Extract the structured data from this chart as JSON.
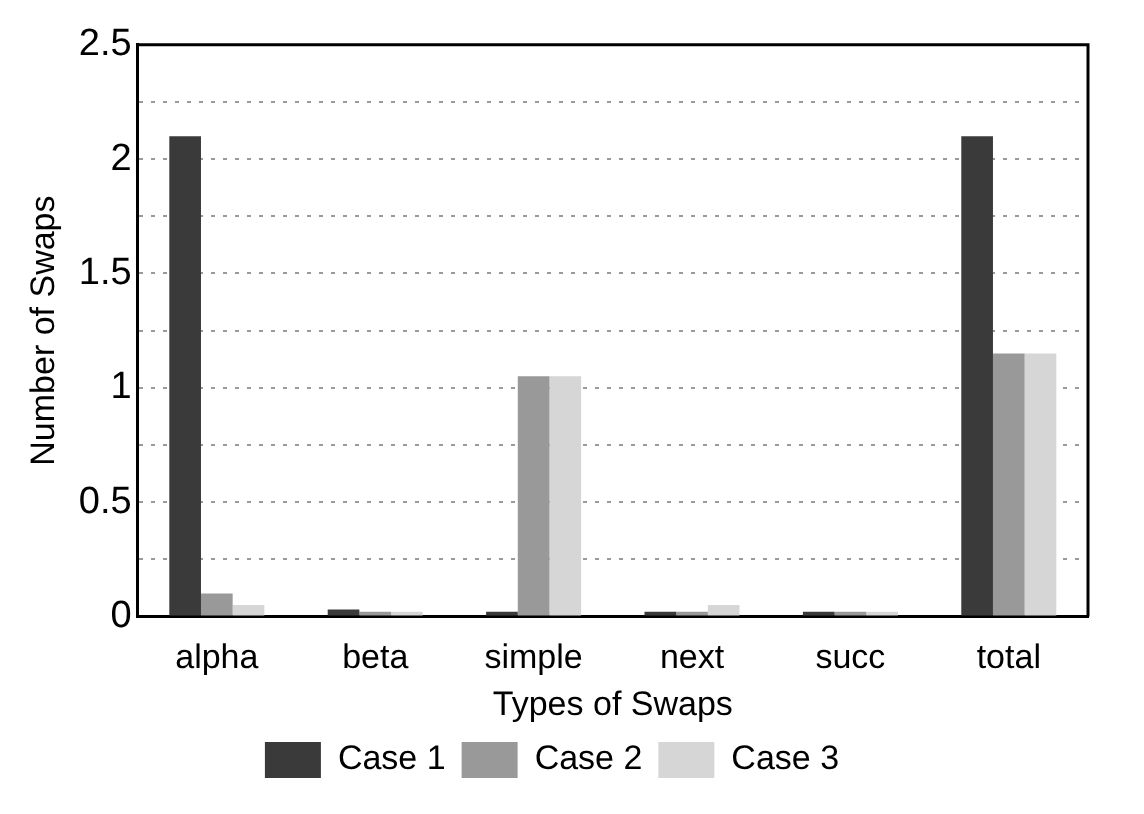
{
  "chart_data": {
    "type": "bar",
    "xlabel": "Types of Swaps",
    "ylabel": "Number of Swaps",
    "categories": [
      "alpha",
      "beta",
      "simple",
      "next",
      "succ",
      "total"
    ],
    "series": [
      {
        "name": "Case 1",
        "color": "#3a3a3a",
        "values": [
          2.1,
          0.03,
          0.02,
          0.02,
          0.02,
          2.1
        ]
      },
      {
        "name": "Case 2",
        "color": "#999999",
        "values": [
          0.1,
          0.02,
          1.05,
          0.02,
          0.02,
          1.15
        ]
      },
      {
        "name": "Case 3",
        "color": "#d6d6d6",
        "values": [
          0.05,
          0.02,
          1.05,
          0.05,
          0.02,
          1.15
        ]
      }
    ],
    "ylim": [
      0,
      2.5
    ],
    "yticks": [
      0,
      {
        "value": 0.25,
        "label": null
      },
      0.5,
      {
        "value": 0.75,
        "label": null
      },
      1,
      {
        "value": 1.25,
        "label": null
      },
      1.5,
      {
        "value": 1.75,
        "label": null
      },
      2,
      {
        "value": 2.25,
        "label": null
      },
      2.5
    ],
    "grid": "y",
    "legend": "bottom"
  }
}
